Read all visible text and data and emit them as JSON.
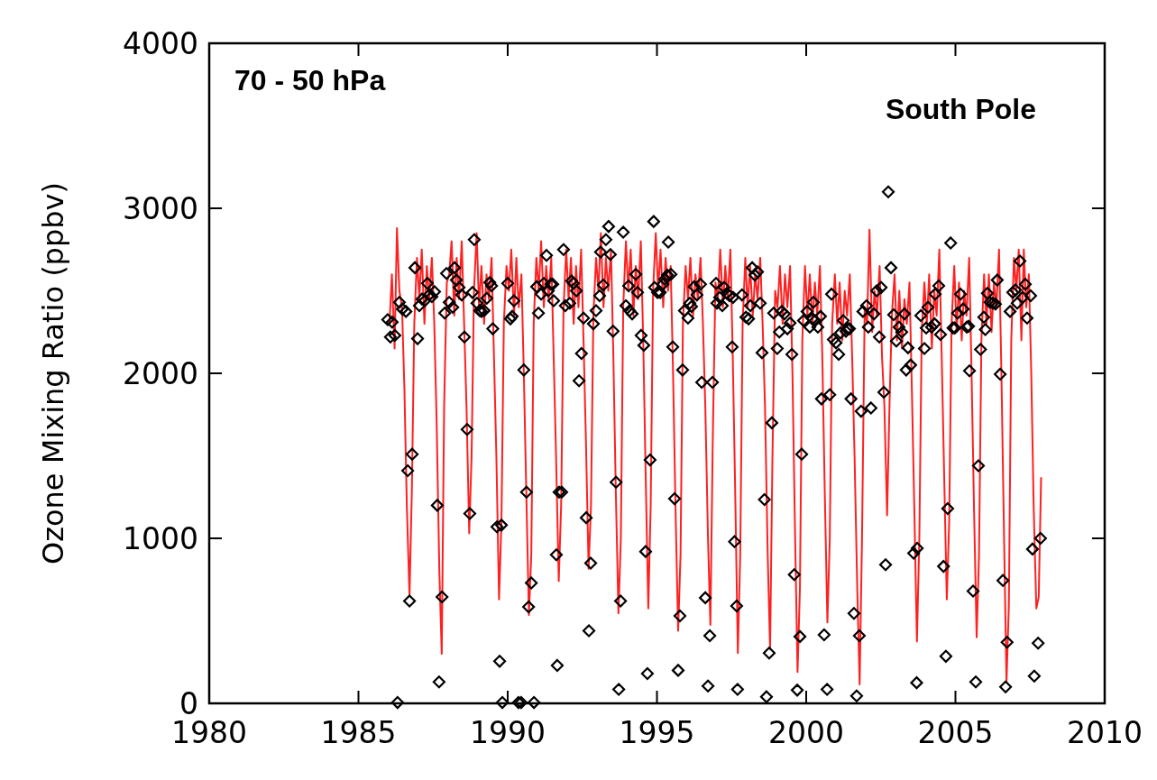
{
  "chart_data": {
    "type": "line",
    "ylabel": "Ozone Mixing Ratio (ppbv)",
    "annotations": [
      "70 - 50 hPa",
      "South Pole"
    ],
    "xlim": [
      1980,
      2010
    ],
    "xticks": [
      1980,
      1985,
      1990,
      1995,
      2000,
      2005,
      2010
    ],
    "ylim": [
      0,
      4000
    ],
    "yticks": [
      0,
      1000,
      2000,
      3000,
      4000
    ],
    "grid": false,
    "series": [
      {
        "color": "#ff2020",
        "line_style": "solid",
        "x": [
          1986.04,
          1986.12,
          1986.21,
          1986.29,
          1986.37,
          1986.46,
          1986.54,
          1986.62,
          1986.71,
          1986.79,
          1986.87,
          1986.96,
          1987.04,
          1987.12,
          1987.21,
          1987.29,
          1987.37,
          1987.46,
          1987.54,
          1987.62,
          1987.71,
          1987.79,
          1987.87,
          1987.96,
          1988.04,
          1988.12,
          1988.21,
          1988.29,
          1988.37,
          1988.46,
          1988.54,
          1988.62,
          1988.71,
          1988.79,
          1988.87,
          1988.96,
          1989.04,
          1989.12,
          1989.21,
          1989.29,
          1989.37,
          1989.46,
          1989.54,
          1989.62,
          1989.71,
          1989.79,
          1989.87,
          1989.96,
          1990.04,
          1990.12,
          1990.21,
          1990.29,
          1990.37,
          1990.46,
          1990.54,
          1990.62,
          1990.71,
          1990.79,
          1990.87,
          1990.96,
          1991.04,
          1991.12,
          1991.21,
          1991.29,
          1991.37,
          1991.46,
          1991.54,
          1991.62,
          1991.71,
          1991.79,
          1991.87,
          1991.96,
          1992.04,
          1992.12,
          1992.21,
          1992.29,
          1992.37,
          1992.46,
          1992.54,
          1992.62,
          1992.71,
          1992.79,
          1992.87,
          1992.96,
          1993.04,
          1993.12,
          1993.21,
          1993.29,
          1993.37,
          1993.46,
          1993.54,
          1993.62,
          1993.71,
          1993.79,
          1993.87,
          1993.96,
          1994.04,
          1994.12,
          1994.21,
          1994.29,
          1994.37,
          1994.46,
          1994.54,
          1994.62,
          1994.71,
          1994.79,
          1994.87,
          1994.96,
          1995.04,
          1995.12,
          1995.21,
          1995.29,
          1995.37,
          1995.46,
          1995.54,
          1995.62,
          1995.71,
          1995.79,
          1995.87,
          1995.96,
          1996.04,
          1996.12,
          1996.21,
          1996.29,
          1996.37,
          1996.46,
          1996.54,
          1996.62,
          1996.71,
          1996.79,
          1996.87,
          1996.96,
          1997.04,
          1997.12,
          1997.21,
          1997.29,
          1997.37,
          1997.46,
          1997.54,
          1997.62,
          1997.71,
          1997.79,
          1997.87,
          1997.96,
          1998.04,
          1998.12,
          1998.21,
          1998.29,
          1998.37,
          1998.46,
          1998.54,
          1998.62,
          1998.71,
          1998.79,
          1998.87,
          1998.96,
          1999.04,
          1999.12,
          1999.21,
          1999.29,
          1999.37,
          1999.46,
          1999.54,
          1999.62,
          1999.71,
          1999.79,
          1999.87,
          1999.96,
          2000.04,
          2000.12,
          2000.21,
          2000.29,
          2000.37,
          2000.46,
          2000.54,
          2000.62,
          2000.71,
          2000.79,
          2000.87,
          2000.96,
          2001.04,
          2001.12,
          2001.21,
          2001.29,
          2001.37,
          2001.46,
          2001.54,
          2001.62,
          2001.71,
          2001.79,
          2001.87,
          2001.96,
          2002.04,
          2002.12,
          2002.21,
          2002.29,
          2002.37,
          2002.46,
          2002.54,
          2002.62,
          2002.71,
          2002.79,
          2002.87,
          2002.96,
          2003.04,
          2003.12,
          2003.21,
          2003.29,
          2003.37,
          2003.46,
          2003.54,
          2003.62,
          2003.71,
          2003.79,
          2003.87,
          2003.96,
          2004.04,
          2004.12,
          2004.21,
          2004.29,
          2004.37,
          2004.46,
          2004.54,
          2004.62,
          2004.71,
          2004.79,
          2004.87,
          2004.96,
          2005.04,
          2005.12,
          2005.21,
          2005.29,
          2005.37,
          2005.46,
          2005.54,
          2005.62,
          2005.71,
          2005.79,
          2005.87,
          2005.96,
          2006.04,
          2006.12,
          2006.21,
          2006.29,
          2006.37,
          2006.46,
          2006.54,
          2006.62,
          2006.71,
          2006.79,
          2006.87,
          2006.96,
          2007.04,
          2007.12,
          2007.21,
          2007.29,
          2007.37,
          2007.46,
          2007.54,
          2007.62,
          2007.71,
          2007.79,
          2007.87
        ],
        "values": [
          2300,
          2600,
          2150,
          2880,
          2500,
          2400,
          1900,
          1200,
          650,
          1300,
          2300,
          2700,
          2450,
          2750,
          2300,
          2650,
          2450,
          2700,
          2300,
          1700,
          800,
          300,
          1800,
          2550,
          2600,
          2800,
          2350,
          2700,
          2450,
          2800,
          2300,
          1800,
          1030,
          1500,
          2500,
          2850,
          2400,
          2650,
          2300,
          2600,
          2450,
          2700,
          2100,
          1500,
          630,
          1100,
          2300,
          2650,
          2500,
          2750,
          2350,
          2700,
          2400,
          2600,
          2000,
          1300,
          535,
          900,
          2300,
          2700,
          2500,
          2800,
          2400,
          2650,
          2450,
          2700,
          2100,
          1500,
          740,
          1200,
          2400,
          2750,
          2450,
          2700,
          2300,
          2650,
          2400,
          2750,
          2200,
          1600,
          815,
          1200,
          2350,
          2700,
          2500,
          2850,
          2400,
          2700,
          2500,
          2750,
          2100,
          1300,
          545,
          1000,
          2400,
          2800,
          2500,
          2750,
          2350,
          2650,
          2450,
          2800,
          2200,
          1400,
          575,
          1200,
          2500,
          2850,
          2500,
          2750,
          2400,
          2700,
          2500,
          2650,
          2000,
          1200,
          440,
          900,
          2300,
          2650,
          2450,
          2700,
          2350,
          2600,
          2450,
          2700,
          2300,
          1800,
          1000,
          475,
          1600,
          2550,
          2450,
          2750,
          2400,
          2650,
          2450,
          2750,
          2100,
          1300,
          305,
          900,
          2300,
          2700,
          2400,
          2650,
          2350,
          2600,
          2450,
          2700,
          2300,
          1800,
          900,
          330,
          1500,
          2500,
          2400,
          2650,
          2300,
          2600,
          2400,
          2650,
          2000,
          1100,
          190,
          700,
          2200,
          2650,
          2350,
          2600,
          2300,
          2550,
          2350,
          2650,
          2100,
          1300,
          490,
          1000,
          2300,
          2600,
          2300,
          2550,
          2200,
          2500,
          2350,
          2600,
          2100,
          1500,
          700,
          115,
          1000,
          2400,
          2300,
          2870,
          2250,
          2500,
          2350,
          2650,
          2100,
          1800,
          1140,
          1800,
          2350,
          2600,
          2200,
          2500,
          2150,
          2450,
          2300,
          2550,
          1900,
          1200,
          375,
          1000,
          2250,
          2550,
          2300,
          2600,
          2150,
          2500,
          2350,
          2750,
          2100,
          1400,
          630,
          1100,
          2300,
          2650,
          2250,
          2550,
          2200,
          2500,
          2350,
          2700,
          2000,
          1200,
          400,
          900,
          2200,
          2600,
          2300,
          2600,
          2250,
          2550,
          2400,
          2750,
          2000,
          1100,
          130,
          600,
          2200,
          2700,
          2500,
          2750,
          2200,
          2750,
          2400,
          2600,
          2000,
          1200,
          575,
          645,
          1370
        ]
      },
      {
        "type": "scatter",
        "color": "#000000",
        "marker": "diamond",
        "x": [
          1985.98,
          1986.07,
          1986.13,
          1986.22,
          1986.31,
          1986.37,
          1986.47,
          1986.59,
          1986.65,
          1986.71,
          1986.8,
          1986.89,
          1986.98,
          1987.04,
          1987.13,
          1987.22,
          1987.31,
          1987.37,
          1987.46,
          1987.55,
          1987.64,
          1987.7,
          1987.8,
          1987.89,
          1987.95,
          1988.04,
          1988.16,
          1988.22,
          1988.28,
          1988.37,
          1988.46,
          1988.55,
          1988.64,
          1988.73,
          1988.82,
          1988.88,
          1988.97,
          1989.06,
          1989.12,
          1989.21,
          1989.3,
          1989.4,
          1989.46,
          1989.5,
          1989.64,
          1989.73,
          1989.79,
          1989.82,
          1990.0,
          1990.09,
          1990.15,
          1990.21,
          1990.36,
          1990.45,
          1990.54,
          1990.63,
          1990.7,
          1990.79,
          1990.88,
          1990.97,
          1991.03,
          1991.12,
          1991.21,
          1991.3,
          1991.36,
          1991.45,
          1991.51,
          1991.54,
          1991.63,
          1991.66,
          1991.72,
          1991.81,
          1991.87,
          1991.93,
          1992.08,
          1992.14,
          1992.2,
          1992.3,
          1992.39,
          1992.47,
          1992.54,
          1992.63,
          1992.72,
          1992.78,
          1992.87,
          1992.96,
          1993.08,
          1993.11,
          1993.2,
          1993.29,
          1993.38,
          1993.44,
          1993.53,
          1993.63,
          1993.72,
          1993.78,
          1993.87,
          1993.96,
          1994.05,
          1994.08,
          1994.17,
          1994.29,
          1994.35,
          1994.47,
          1994.56,
          1994.62,
          1994.68,
          1994.77,
          1994.89,
          1994.92,
          1995.02,
          1995.11,
          1995.2,
          1995.26,
          1995.35,
          1995.38,
          1995.47,
          1995.53,
          1995.59,
          1995.71,
          1995.77,
          1995.86,
          1995.92,
          1996.04,
          1996.1,
          1996.16,
          1996.25,
          1996.34,
          1996.46,
          1996.5,
          1996.62,
          1996.71,
          1996.77,
          1996.86,
          1996.98,
          1997.01,
          1997.1,
          1997.19,
          1997.25,
          1997.34,
          1997.43,
          1997.52,
          1997.55,
          1997.6,
          1997.67,
          1997.7,
          1997.85,
          1997.98,
          1998.07,
          1998.13,
          1998.19,
          1998.28,
          1998.37,
          1998.46,
          1998.52,
          1998.6,
          1998.67,
          1998.76,
          1998.85,
          1998.91,
          1999.03,
          1999.1,
          1999.18,
          1999.27,
          1999.37,
          1999.46,
          1999.52,
          1999.6,
          1999.7,
          1999.79,
          1999.85,
          1999.91,
          2000.03,
          2000.12,
          2000.21,
          2000.24,
          2000.3,
          2000.39,
          2000.48,
          2000.51,
          2000.6,
          2000.7,
          2000.79,
          2000.85,
          2000.91,
          2001.0,
          2001.09,
          2001.15,
          2001.24,
          2001.33,
          2001.39,
          2001.45,
          2001.5,
          2001.6,
          2001.69,
          2001.78,
          2001.84,
          2001.9,
          2002.02,
          2002.08,
          2002.17,
          2002.27,
          2002.36,
          2002.45,
          2002.51,
          2002.6,
          2002.66,
          2002.75,
          2002.84,
          2002.93,
          2003.02,
          2003.11,
          2003.2,
          2003.29,
          2003.35,
          2003.41,
          2003.5,
          2003.6,
          2003.7,
          2003.72,
          2003.84,
          2003.96,
          2004.02,
          2004.08,
          2004.2,
          2004.3,
          2004.32,
          2004.44,
          2004.5,
          2004.6,
          2004.68,
          2004.74,
          2004.84,
          2004.92,
          2004.98,
          2005.07,
          2005.17,
          2005.26,
          2005.38,
          2005.44,
          2005.47,
          2005.59,
          2005.68,
          2005.77,
          2005.84,
          2005.95,
          2006.0,
          2006.07,
          2006.16,
          2006.25,
          2006.34,
          2006.4,
          2006.5,
          2006.59,
          2006.68,
          2006.73,
          2006.83,
          2006.92,
          2007.01,
          2007.07,
          2007.16,
          2007.25,
          2007.34,
          2007.4,
          2007.52,
          2007.58,
          2007.64,
          2007.77,
          2007.85
        ],
        "values": [
          2325,
          2220,
          2310,
          2230,
          5,
          2430,
          2390,
          2375,
          1410,
          620,
          1510,
          2640,
          2210,
          2410,
          2450,
          2440,
          2545,
          2475,
          2465,
          2495,
          1200,
          130,
          645,
          2365,
          2605,
          2430,
          2400,
          2640,
          2565,
          2520,
          2475,
          2220,
          1660,
          1150,
          2490,
          2810,
          2425,
          2380,
          2375,
          2380,
          2455,
          2550,
          2530,
          2270,
          1070,
          255,
          1080,
          5,
          2545,
          2330,
          2345,
          2440,
          5,
          5,
          2020,
          1280,
          585,
          730,
          5,
          2525,
          2365,
          2480,
          2545,
          2715,
          2500,
          2540,
          2540,
          2440,
          900,
          230,
          1280,
          1280,
          2750,
          2410,
          2425,
          2560,
          2545,
          2500,
          1955,
          2120,
          2335,
          1125,
          440,
          850,
          2300,
          2380,
          2470,
          2735,
          2535,
          2810,
          2890,
          2720,
          2255,
          1340,
          85,
          620,
          2855,
          2410,
          2530,
          2380,
          2360,
          2600,
          2490,
          2230,
          2170,
          920,
          180,
          1475,
          2920,
          2520,
          2490,
          2490,
          2540,
          2570,
          2595,
          2795,
          2600,
          2160,
          1240,
          200,
          530,
          2020,
          2380,
          2335,
          2425,
          2405,
          2525,
          2475,
          2540,
          1945,
          640,
          105,
          410,
          1945,
          2545,
          2425,
          2460,
          2410,
          2520,
          2485,
          2470,
          2160,
          2460,
          980,
          590,
          85,
          2475,
          2340,
          2330,
          2410,
          2640,
          2595,
          2615,
          2425,
          2125,
          1235,
          40,
          305,
          1700,
          2365,
          2150,
          2250,
          2375,
          2360,
          2270,
          2305,
          2115,
          780,
          80,
          405,
          1510,
          2320,
          2375,
          2280,
          2330,
          2430,
          2320,
          2280,
          2345,
          1845,
          415,
          85,
          1870,
          2480,
          2205,
          2185,
          2115,
          2245,
          2320,
          2255,
          2270,
          2270,
          1845,
          545,
          45,
          410,
          1770,
          2375,
          2410,
          2280,
          1790,
          2360,
          2500,
          2220,
          2520,
          1885,
          840,
          3100,
          2640,
          2355,
          2195,
          2280,
          2250,
          2360,
          2020,
          2155,
          2050,
          910,
          125,
          940,
          2350,
          2150,
          2275,
          2400,
          2280,
          2300,
          2480,
          2530,
          2235,
          830,
          285,
          1180,
          2790,
          2275,
          2275,
          2365,
          2480,
          2390,
          2280,
          2285,
          2015,
          680,
          130,
          1440,
          2145,
          2340,
          2265,
          2485,
          2430,
          2425,
          2420,
          2565,
          1995,
          745,
          100,
          370,
          2375,
          2490,
          2505,
          2425,
          2680,
          2460,
          2540,
          2335,
          2470,
          935,
          165,
          365,
          1000
        ]
      }
    ]
  }
}
